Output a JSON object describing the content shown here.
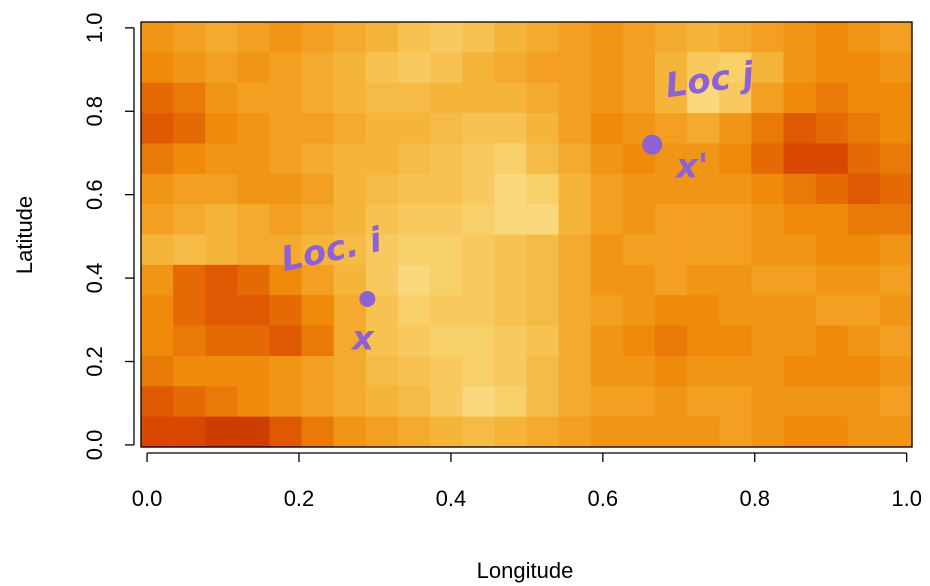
{
  "chart_data": {
    "type": "heatmap",
    "x_label": "Longitude",
    "y_label": "Latitude",
    "xlim": [
      -0.008,
      1.007
    ],
    "ylim": [
      -0.005,
      1.014
    ],
    "xticks": [
      {
        "value": 0,
        "label": "0.0"
      },
      0.2,
      0.4,
      0.6,
      0.8,
      {
        "value": 1,
        "label": "1.0"
      }
    ],
    "yticks": [
      {
        "value": 0,
        "label": "0.0"
      },
      0.2,
      0.4,
      0.6,
      0.8,
      {
        "value": 1,
        "label": "1.0"
      }
    ],
    "colors": [
      "#a81d00",
      "#d94800",
      "#f08a0a",
      "#f5b43a",
      "#f8d06a",
      "#fdf0b8"
    ],
    "z": [
      [
        0.45,
        0.5,
        0.55,
        0.5,
        0.45,
        0.5,
        0.55,
        0.6,
        0.7,
        0.75,
        0.7,
        0.6,
        0.55,
        0.5,
        0.45,
        0.5,
        0.55,
        0.6,
        0.55,
        0.5,
        0.45,
        0.4,
        0.45,
        0.5
      ],
      [
        0.4,
        0.45,
        0.5,
        0.45,
        0.5,
        0.55,
        0.6,
        0.7,
        0.75,
        0.7,
        0.6,
        0.55,
        0.5,
        0.5,
        0.45,
        0.5,
        0.6,
        0.75,
        0.8,
        0.6,
        0.45,
        0.4,
        0.4,
        0.45
      ],
      [
        0.3,
        0.35,
        0.45,
        0.5,
        0.5,
        0.55,
        0.6,
        0.65,
        0.65,
        0.6,
        0.6,
        0.6,
        0.55,
        0.5,
        0.45,
        0.5,
        0.6,
        0.85,
        0.75,
        0.5,
        0.4,
        0.35,
        0.4,
        0.4
      ],
      [
        0.25,
        0.3,
        0.4,
        0.45,
        0.5,
        0.5,
        0.55,
        0.6,
        0.6,
        0.65,
        0.7,
        0.7,
        0.6,
        0.5,
        0.4,
        0.45,
        0.5,
        0.55,
        0.45,
        0.35,
        0.25,
        0.3,
        0.35,
        0.4
      ],
      [
        0.35,
        0.4,
        0.45,
        0.45,
        0.5,
        0.55,
        0.6,
        0.6,
        0.65,
        0.7,
        0.75,
        0.8,
        0.65,
        0.55,
        0.45,
        0.4,
        0.45,
        0.45,
        0.4,
        0.3,
        0.2,
        0.2,
        0.3,
        0.35
      ],
      [
        0.45,
        0.5,
        0.5,
        0.45,
        0.45,
        0.5,
        0.6,
        0.65,
        0.7,
        0.7,
        0.75,
        0.85,
        0.8,
        0.6,
        0.5,
        0.45,
        0.45,
        0.45,
        0.45,
        0.4,
        0.35,
        0.3,
        0.25,
        0.3
      ],
      [
        0.5,
        0.55,
        0.6,
        0.55,
        0.5,
        0.55,
        0.6,
        0.7,
        0.75,
        0.75,
        0.8,
        0.85,
        0.85,
        0.6,
        0.5,
        0.45,
        0.5,
        0.5,
        0.5,
        0.45,
        0.4,
        0.4,
        0.35,
        0.35
      ],
      [
        0.6,
        0.65,
        0.6,
        0.55,
        0.55,
        0.6,
        0.65,
        0.75,
        0.8,
        0.8,
        0.75,
        0.7,
        0.65,
        0.55,
        0.45,
        0.5,
        0.5,
        0.5,
        0.5,
        0.45,
        0.45,
        0.4,
        0.4,
        0.45
      ],
      [
        0.45,
        0.3,
        0.25,
        0.3,
        0.4,
        0.5,
        0.6,
        0.75,
        0.85,
        0.8,
        0.75,
        0.7,
        0.65,
        0.55,
        0.45,
        0.45,
        0.5,
        0.45,
        0.45,
        0.5,
        0.5,
        0.45,
        0.45,
        0.5
      ],
      [
        0.4,
        0.3,
        0.25,
        0.25,
        0.3,
        0.4,
        0.55,
        0.7,
        0.8,
        0.75,
        0.75,
        0.7,
        0.65,
        0.55,
        0.5,
        0.45,
        0.4,
        0.4,
        0.45,
        0.45,
        0.45,
        0.5,
        0.5,
        0.45
      ],
      [
        0.4,
        0.35,
        0.3,
        0.3,
        0.25,
        0.35,
        0.55,
        0.7,
        0.75,
        0.8,
        0.8,
        0.75,
        0.7,
        0.55,
        0.45,
        0.4,
        0.35,
        0.4,
        0.4,
        0.45,
        0.45,
        0.4,
        0.45,
        0.5
      ],
      [
        0.35,
        0.4,
        0.4,
        0.4,
        0.45,
        0.5,
        0.55,
        0.65,
        0.7,
        0.75,
        0.8,
        0.75,
        0.65,
        0.55,
        0.45,
        0.45,
        0.4,
        0.45,
        0.45,
        0.45,
        0.4,
        0.4,
        0.4,
        0.45
      ],
      [
        0.25,
        0.3,
        0.35,
        0.4,
        0.45,
        0.5,
        0.55,
        0.6,
        0.65,
        0.75,
        0.85,
        0.8,
        0.65,
        0.55,
        0.5,
        0.5,
        0.45,
        0.5,
        0.5,
        0.45,
        0.45,
        0.45,
        0.45,
        0.5
      ],
      [
        0.2,
        0.2,
        0.15,
        0.15,
        0.25,
        0.35,
        0.45,
        0.5,
        0.55,
        0.6,
        0.65,
        0.6,
        0.55,
        0.5,
        0.45,
        0.45,
        0.45,
        0.45,
        0.5,
        0.45,
        0.4,
        0.4,
        0.45,
        0.45
      ]
    ],
    "points": {
      "x": [
        0.29,
        0.665
      ],
      "y": [
        0.35,
        0.72
      ],
      "color": "#8e62d4"
    },
    "annotations": [
      "Loc. i",
      "x",
      "Loc j",
      "x'"
    ]
  }
}
